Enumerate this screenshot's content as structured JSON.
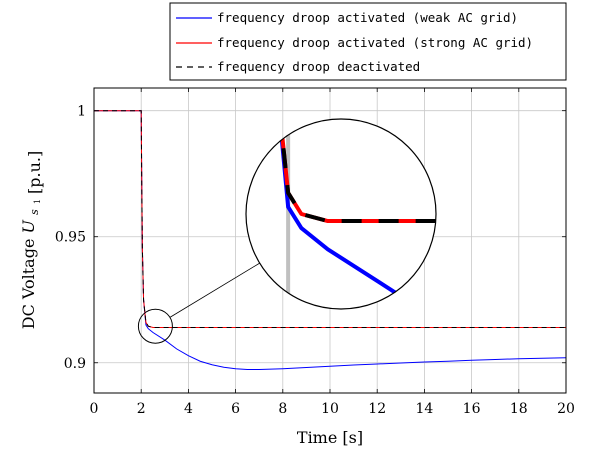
{
  "chart_data": {
    "type": "line",
    "xlabel": "Time [s]",
    "ylabel_main": "DC Voltage",
    "ylabel_symbol": "U",
    "ylabel_subscript": "s",
    "ylabel_subsubscript": "1",
    "ylabel_unit": "[p.u.]",
    "xlim": [
      0,
      20
    ],
    "ylim": [
      0.888,
      1.009
    ],
    "xticks": [
      "0",
      "2",
      "4",
      "6",
      "8",
      "10",
      "12",
      "14",
      "16",
      "18",
      "20"
    ],
    "yticks": [
      "0.9",
      "0.95",
      "1"
    ],
    "grid": true,
    "legend_position": "top-right-outside",
    "series": [
      {
        "name": "frequency droop activated (weak AC grid)",
        "color": "#0000ff",
        "dash": "solid",
        "x": [
          0,
          2,
          2.02,
          2.05,
          2.1,
          2.2,
          2.3,
          2.5,
          3,
          3.5,
          4,
          4.5,
          5,
          5.5,
          6,
          6.5,
          7,
          8,
          9,
          10,
          11,
          12,
          13,
          14,
          15,
          16,
          17,
          18,
          19,
          20
        ],
        "y": [
          1,
          1,
          0.975,
          0.945,
          0.925,
          0.915,
          0.9135,
          0.912,
          0.909,
          0.9055,
          0.9028,
          0.9006,
          0.8992,
          0.8982,
          0.8976,
          0.8973,
          0.8973,
          0.8976,
          0.8981,
          0.8986,
          0.8991,
          0.8995,
          0.8999,
          0.9003,
          0.9006,
          0.901,
          0.9013,
          0.9016,
          0.9018,
          0.902
        ]
      },
      {
        "name": "frequency droop activated (strong AC grid)",
        "color": "#ff0000",
        "dash": "solid",
        "x": [
          0,
          2,
          2.02,
          2.05,
          2.1,
          2.2,
          2.3,
          2.5,
          3,
          5,
          10,
          15,
          20
        ],
        "y": [
          1,
          1,
          0.975,
          0.945,
          0.925,
          0.916,
          0.9145,
          0.914,
          0.914,
          0.914,
          0.914,
          0.914,
          0.914
        ]
      },
      {
        "name": "frequency droop deactivated",
        "color": "#000000",
        "dash": "dashed",
        "x": [
          0,
          2,
          2.02,
          2.05,
          2.1,
          2.2,
          2.3,
          2.5,
          3,
          5,
          10,
          15,
          20
        ],
        "y": [
          1,
          1,
          0.975,
          0.945,
          0.925,
          0.916,
          0.9145,
          0.914,
          0.914,
          0.914,
          0.914,
          0.914,
          0.914
        ]
      }
    ],
    "zoom_inset": {
      "focus_x": 2.6,
      "focus_y": 0.9145
    }
  }
}
